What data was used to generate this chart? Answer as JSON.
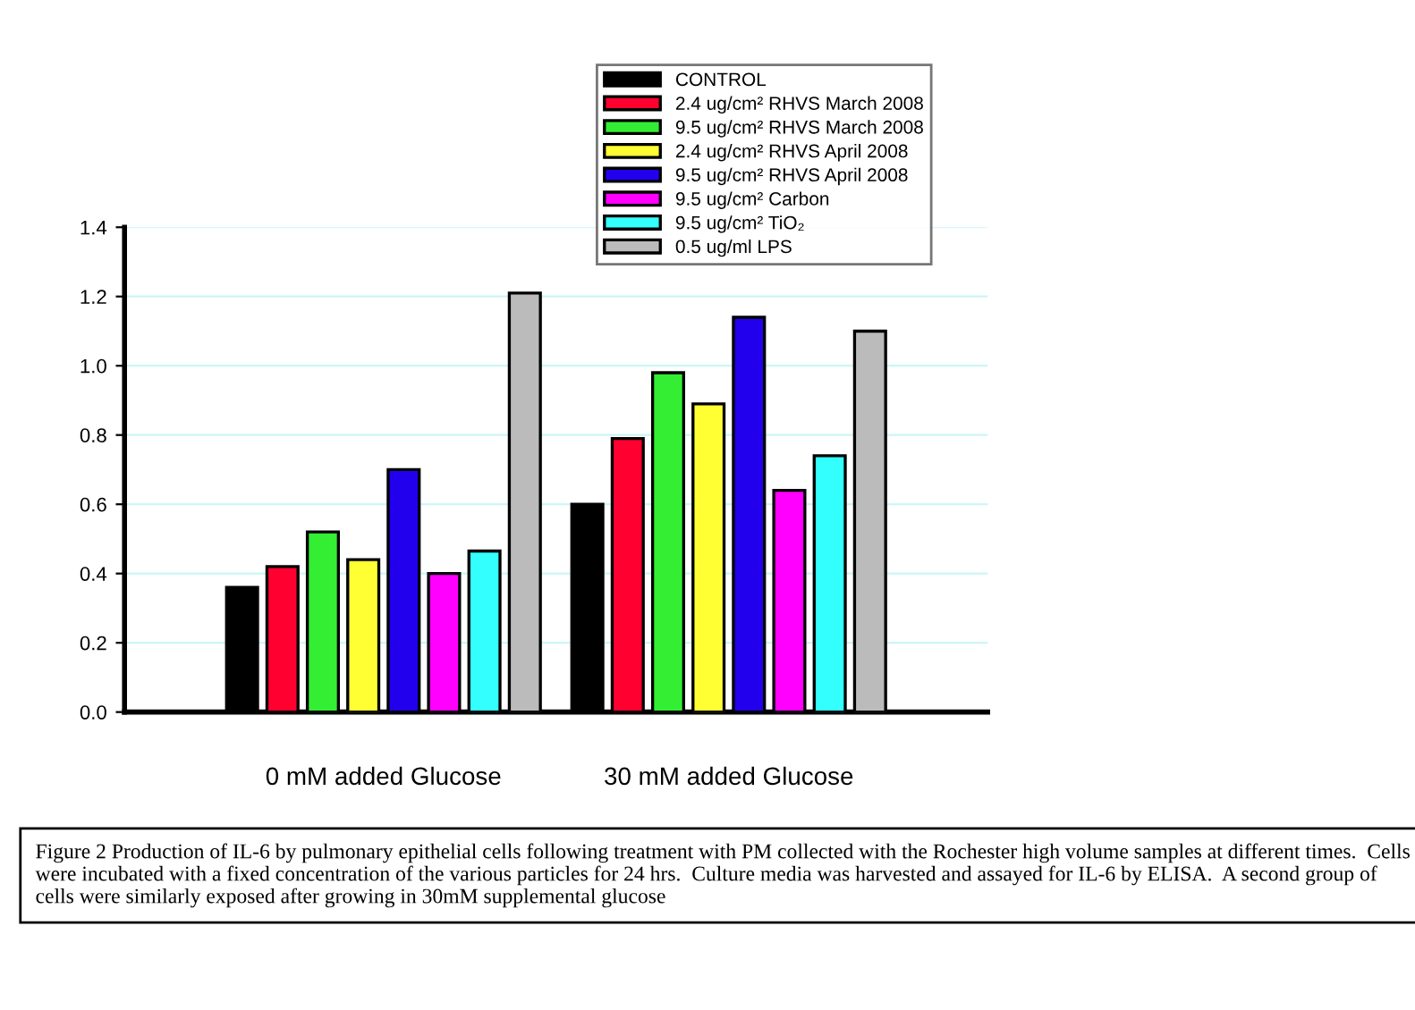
{
  "chart_data": {
    "type": "bar",
    "categories": [
      "0 mM added Glucose",
      "30 mM added Glucose"
    ],
    "series": [
      {
        "name": "CONTROL",
        "color": "#000000",
        "values": [
          0.36,
          0.6
        ]
      },
      {
        "name": "2.4 ug/cm² RHVS March 2008",
        "color": "#ff0030",
        "values": [
          0.42,
          0.79
        ]
      },
      {
        "name": "9.5 ug/cm² RHVS March 2008",
        "color": "#33ee33",
        "values": [
          0.52,
          0.98
        ]
      },
      {
        "name": "2.4 ug/cm² RHVS April 2008",
        "color": "#ffff33",
        "values": [
          0.44,
          0.89
        ]
      },
      {
        "name": "9.5 ug/cm² RHVS April 2008",
        "color": "#2200ee",
        "values": [
          0.7,
          1.14
        ]
      },
      {
        "name": "9.5 ug/cm² Carbon",
        "color": "#ff00ff",
        "values": [
          0.4,
          0.64
        ]
      },
      {
        "name": "9.5 ug/cm² TiO₂",
        "color": "#33ffff",
        "values": [
          0.465,
          0.74
        ]
      },
      {
        "name": "0.5 ug/ml LPS",
        "color": "#bbbbbb",
        "values": [
          1.21,
          1.1
        ]
      }
    ],
    "ylim": [
      0,
      1.4
    ],
    "yticks": [
      {
        "value": 0,
        "label": "0.0"
      },
      {
        "value": 0.2,
        "label": "0.2"
      },
      {
        "value": 0.4,
        "label": "0.4"
      },
      {
        "value": 0.6,
        "label": "0.6"
      },
      {
        "value": 0.8,
        "label": "0.8"
      },
      {
        "value": 1.0,
        "label": "1.0"
      },
      {
        "value": 1.2,
        "label": "1.2"
      },
      {
        "value": 1.4,
        "label": "1.4"
      }
    ],
    "grid": "y",
    "legend": "top",
    "annotations": [
      "Figure 2 Production of IL-6 by pulmonary epithelial cells following treatment with PM collected with the Rochester high volume samples at different times.  Cells were incubated with a fixed concentration of the various particles for 24 hrs.  Culture media was harvested and assayed for IL-6 by ELISA.  A second group of cells were similarly exposed after growing in 30mM supplemental glucose"
    ]
  }
}
